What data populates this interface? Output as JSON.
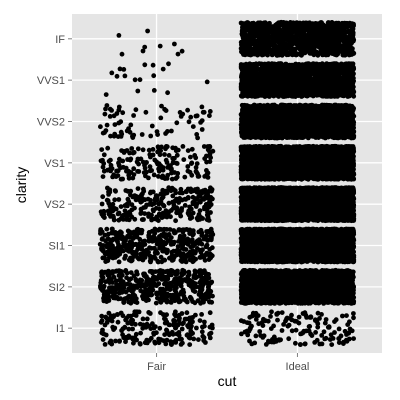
{
  "chart_data": {
    "type": "scatter",
    "subtype": "jitter",
    "title": "",
    "xlabel": "cut",
    "ylabel": "clarity",
    "x_categories": [
      "Fair",
      "Ideal"
    ],
    "y_categories": [
      "I1",
      "SI2",
      "SI1",
      "VS2",
      "VS1",
      "VVS2",
      "VVS1",
      "IF"
    ],
    "grid": true,
    "legend": "none",
    "colors": {
      "panel": "#e5e5e5",
      "grid": "#ffffff",
      "points": "#000000",
      "tick_text": "#4d4d4d"
    },
    "group_counts": {
      "Fair": {
        "I1": 210,
        "SI2": 466,
        "SI1": 408,
        "VS2": 261,
        "VS1": 170,
        "VVS2": 69,
        "VVS1": 17,
        "IF": 9
      },
      "Ideal": {
        "I1": 146,
        "SI2": 2598,
        "SI1": 4282,
        "VS2": 5071,
        "VS1": 3589,
        "VVS2": 2606,
        "VVS1": 2047,
        "IF": 1212
      }
    }
  }
}
